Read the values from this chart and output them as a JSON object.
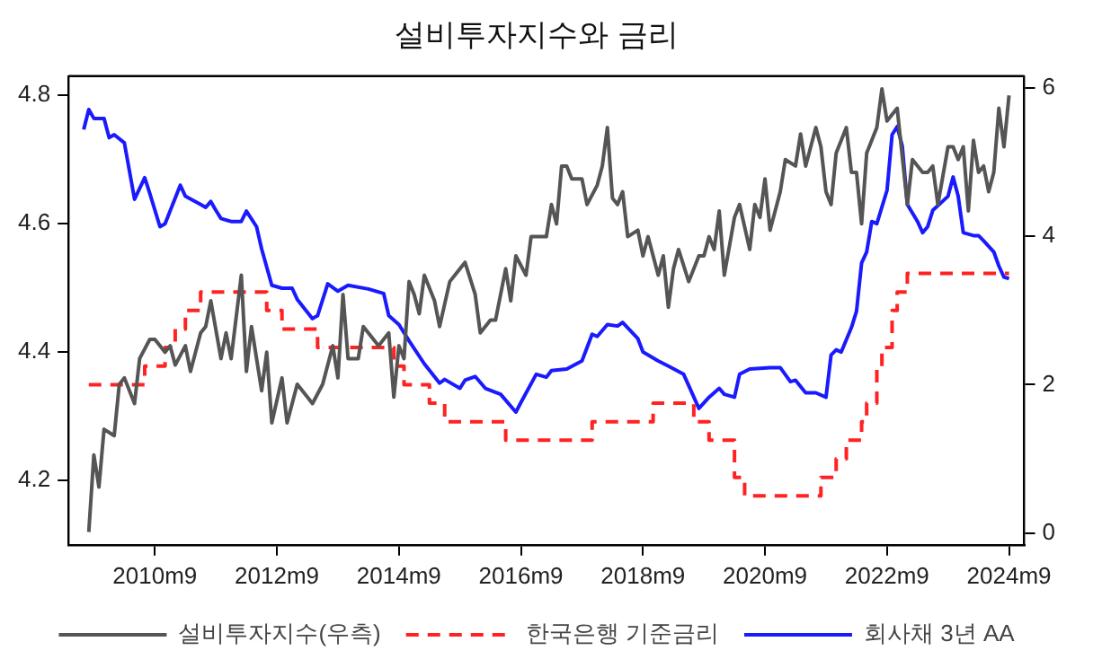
{
  "chart_data": {
    "type": "line",
    "title": "설비투자지수와 금리",
    "marker": "none",
    "legend": "bottom",
    "grid": false,
    "xlim": [
      "2009-04",
      "2024-12"
    ],
    "xticks": [
      {
        "value": "2010-09",
        "label": "2010m9"
      },
      {
        "value": "2012-09",
        "label": "2012m9"
      },
      {
        "value": "2014-09",
        "label": "2014m9"
      },
      {
        "value": "2016-09",
        "label": "2016m9"
      },
      {
        "value": "2018-09",
        "label": "2018m9"
      },
      {
        "value": "2020-09",
        "label": "2020m9"
      },
      {
        "value": "2022-09",
        "label": "2022m9"
      },
      {
        "value": "2024-09",
        "label": "2024m9"
      }
    ],
    "ylim": [
      4.1,
      4.83
    ],
    "yticks": [
      4.2,
      4.4,
      4.6,
      4.8
    ],
    "y2lim": [
      -0.16,
      6.16
    ],
    "y2ticks": [
      0,
      2,
      4,
      6
    ],
    "series": [
      {
        "name": "설비투자지수(우측)",
        "type": "line",
        "color": "#555555",
        "line_style": "solid",
        "x": [
          "2009-08",
          "2009-09",
          "2009-10",
          "2009-11",
          "2010-01",
          "2010-02",
          "2010-03",
          "2010-05",
          "2010-06",
          "2010-08",
          "2010-09",
          "2010-11",
          "2010-12",
          "2011-01",
          "2011-03",
          "2011-04",
          "2011-06",
          "2011-07",
          "2011-08",
          "2011-10",
          "2011-11",
          "2011-12",
          "2012-02",
          "2012-03",
          "2012-04",
          "2012-06",
          "2012-07",
          "2012-08",
          "2012-10",
          "2012-11",
          "2013-01",
          "2013-03",
          "2013-04",
          "2013-06",
          "2013-08",
          "2013-09",
          "2013-10",
          "2013-11",
          "2014-01",
          "2014-02",
          "2014-04",
          "2014-05",
          "2014-07",
          "2014-08",
          "2014-09",
          "2014-10",
          "2014-11",
          "2014-12",
          "2015-01",
          "2015-02",
          "2015-04",
          "2015-05",
          "2015-07",
          "2015-08",
          "2015-10",
          "2015-12",
          "2016-01",
          "2016-03",
          "2016-04",
          "2016-06",
          "2016-07",
          "2016-08",
          "2016-10",
          "2016-11",
          "2017-02",
          "2017-03",
          "2017-04",
          "2017-05",
          "2017-06",
          "2017-07",
          "2017-09",
          "2017-10",
          "2017-12",
          "2018-01",
          "2018-02",
          "2018-03",
          "2018-04",
          "2018-05",
          "2018-06",
          "2018-08",
          "2018-09",
          "2018-10",
          "2018-12",
          "2019-01",
          "2019-02",
          "2019-03",
          "2019-04",
          "2019-06",
          "2019-08",
          "2019-09",
          "2019-10",
          "2019-11",
          "2019-12",
          "2020-01",
          "2020-03",
          "2020-04",
          "2020-06",
          "2020-07",
          "2020-08",
          "2020-09",
          "2020-10",
          "2020-12",
          "2021-01",
          "2021-03",
          "2021-04",
          "2021-05",
          "2021-07",
          "2021-08",
          "2021-09",
          "2021-10",
          "2021-11",
          "2022-01",
          "2022-02",
          "2022-03",
          "2022-04",
          "2022-05",
          "2022-07",
          "2022-08",
          "2022-09",
          "2022-11",
          "2023-01",
          "2023-02",
          "2023-04",
          "2023-05",
          "2023-06",
          "2023-07",
          "2023-09",
          "2023-10",
          "2023-11",
          "2023-12",
          "2024-01",
          "2024-02",
          "2024-03",
          "2024-04",
          "2024-05",
          "2024-06",
          "2024-07",
          "2024-08",
          "2024-09"
        ],
        "values": [
          4.12,
          4.24,
          4.19,
          4.28,
          4.27,
          4.35,
          4.36,
          4.32,
          4.39,
          4.42,
          4.42,
          4.4,
          4.41,
          4.38,
          4.41,
          4.37,
          4.43,
          4.44,
          4.48,
          4.39,
          4.43,
          4.39,
          4.52,
          4.37,
          4.44,
          4.34,
          4.4,
          4.29,
          4.36,
          4.29,
          4.35,
          4.33,
          4.32,
          4.35,
          4.41,
          4.36,
          4.49,
          4.39,
          4.39,
          4.44,
          4.42,
          4.41,
          4.43,
          4.33,
          4.41,
          4.39,
          4.51,
          4.49,
          4.46,
          4.52,
          4.48,
          4.44,
          4.51,
          4.52,
          4.54,
          4.49,
          4.43,
          4.45,
          4.45,
          4.53,
          4.48,
          4.55,
          4.52,
          4.58,
          4.58,
          4.63,
          4.6,
          4.69,
          4.69,
          4.67,
          4.67,
          4.63,
          4.66,
          4.69,
          4.75,
          4.64,
          4.63,
          4.65,
          4.58,
          4.59,
          4.55,
          4.58,
          4.52,
          4.55,
          4.47,
          4.53,
          4.56,
          4.51,
          4.55,
          4.55,
          4.58,
          4.56,
          4.62,
          4.52,
          4.61,
          4.63,
          4.56,
          4.63,
          4.61,
          4.67,
          4.59,
          4.65,
          4.7,
          4.69,
          4.74,
          4.69,
          4.75,
          4.72,
          4.65,
          4.63,
          4.71,
          4.75,
          4.68,
          4.68,
          4.6,
          4.71,
          4.75,
          4.81,
          4.76,
          4.78,
          4.63,
          4.7,
          4.68,
          4.68,
          4.69,
          4.63,
          4.72,
          4.72,
          4.7,
          4.72,
          4.62,
          4.73,
          4.68,
          4.69,
          4.65,
          4.68,
          4.78,
          4.72,
          4.8
        ]
      },
      {
        "name": "한국은행 기준금리",
        "type": "step",
        "axis": "y2",
        "color": "#ff2222",
        "line_style": "dashed",
        "x": [
          "2009-08",
          "2010-07",
          "2010-11",
          "2011-01",
          "2011-03",
          "2011-06",
          "2012-07",
          "2012-10",
          "2013-05",
          "2014-08",
          "2014-10",
          "2015-03",
          "2015-06",
          "2016-06",
          "2017-11",
          "2018-11",
          "2019-07",
          "2019-10",
          "2020-03",
          "2020-05",
          "2021-08",
          "2021-11",
          "2022-01",
          "2022-04",
          "2022-05",
          "2022-07",
          "2022-08",
          "2022-10",
          "2022-11",
          "2023-01",
          "2024-09"
        ],
        "values": [
          2.0,
          2.25,
          2.5,
          2.75,
          3.0,
          3.25,
          3.0,
          2.75,
          2.5,
          2.25,
          2.0,
          1.75,
          1.5,
          1.25,
          1.5,
          1.75,
          1.5,
          1.25,
          0.75,
          0.5,
          0.75,
          1.0,
          1.25,
          1.5,
          1.75,
          2.25,
          2.5,
          3.0,
          3.25,
          3.5,
          3.5
        ]
      },
      {
        "name": "회사채 3년 AA",
        "type": "line",
        "axis": "y2",
        "color": "#1a1aff",
        "line_style": "solid",
        "x": [
          "2009-07",
          "2009-08",
          "2009-09",
          "2009-11",
          "2009-12",
          "2010-01",
          "2010-03",
          "2010-05",
          "2010-07",
          "2010-08",
          "2010-10",
          "2010-11",
          "2011-02",
          "2011-03",
          "2011-06",
          "2011-07",
          "2011-08",
          "2011-09",
          "2011-10",
          "2011-12",
          "2012-02",
          "2012-03",
          "2012-05",
          "2012-06",
          "2012-08",
          "2012-10",
          "2012-12",
          "2013-01",
          "2013-04",
          "2013-05",
          "2013-07",
          "2013-09",
          "2013-11",
          "2014-03",
          "2014-06",
          "2014-07",
          "2014-09",
          "2014-11",
          "2015-02",
          "2015-05",
          "2015-06",
          "2015-09",
          "2015-10",
          "2015-12",
          "2016-02",
          "2016-05",
          "2016-08",
          "2016-09",
          "2016-12",
          "2017-02",
          "2017-03",
          "2017-06",
          "2017-09",
          "2017-11",
          "2017-12",
          "2018-02",
          "2018-04",
          "2018-05",
          "2018-08",
          "2018-09",
          "2018-12",
          "2019-02",
          "2019-05",
          "2019-08",
          "2019-10",
          "2019-12",
          "2020-01",
          "2020-03",
          "2020-04",
          "2020-06",
          "2020-10",
          "2020-12",
          "2021-02",
          "2021-03",
          "2021-05",
          "2021-07",
          "2021-09",
          "2021-10",
          "2021-11",
          "2021-12",
          "2022-02",
          "2022-03",
          "2022-04",
          "2022-05",
          "2022-06",
          "2022-07",
          "2022-09",
          "2022-10",
          "2022-11",
          "2022-12",
          "2023-01",
          "2023-03",
          "2023-04",
          "2023-05",
          "2023-06",
          "2023-09",
          "2023-10",
          "2023-11",
          "2023-12",
          "2024-02",
          "2024-03",
          "2024-04",
          "2024-06",
          "2024-07",
          "2024-08",
          "2024-09"
        ],
        "values": [
          5.44,
          5.71,
          5.59,
          5.59,
          5.33,
          5.37,
          5.26,
          4.5,
          4.79,
          4.58,
          4.13,
          4.17,
          4.69,
          4.54,
          4.43,
          4.39,
          4.47,
          4.35,
          4.24,
          4.2,
          4.2,
          4.34,
          4.13,
          3.83,
          3.34,
          3.3,
          3.3,
          3.15,
          2.89,
          2.93,
          3.36,
          3.26,
          3.34,
          3.29,
          3.23,
          2.93,
          2.81,
          2.59,
          2.28,
          2.02,
          2.07,
          1.95,
          2.06,
          2.11,
          1.95,
          1.87,
          1.63,
          1.76,
          2.14,
          2.1,
          2.19,
          2.21,
          2.32,
          2.68,
          2.65,
          2.81,
          2.79,
          2.84,
          2.62,
          2.44,
          2.32,
          2.25,
          2.14,
          1.68,
          1.83,
          1.95,
          1.87,
          1.83,
          2.14,
          2.21,
          2.23,
          2.23,
          2.04,
          2.06,
          1.89,
          1.89,
          1.83,
          2.4,
          2.47,
          2.44,
          2.77,
          2.99,
          3.64,
          3.79,
          4.2,
          4.17,
          4.62,
          5.37,
          5.48,
          5.22,
          4.43,
          4.2,
          4.05,
          4.13,
          4.35,
          4.54,
          4.8,
          4.54,
          4.05,
          4.01,
          4.01,
          3.94,
          3.79,
          3.6,
          3.45,
          3.43
        ]
      }
    ]
  }
}
